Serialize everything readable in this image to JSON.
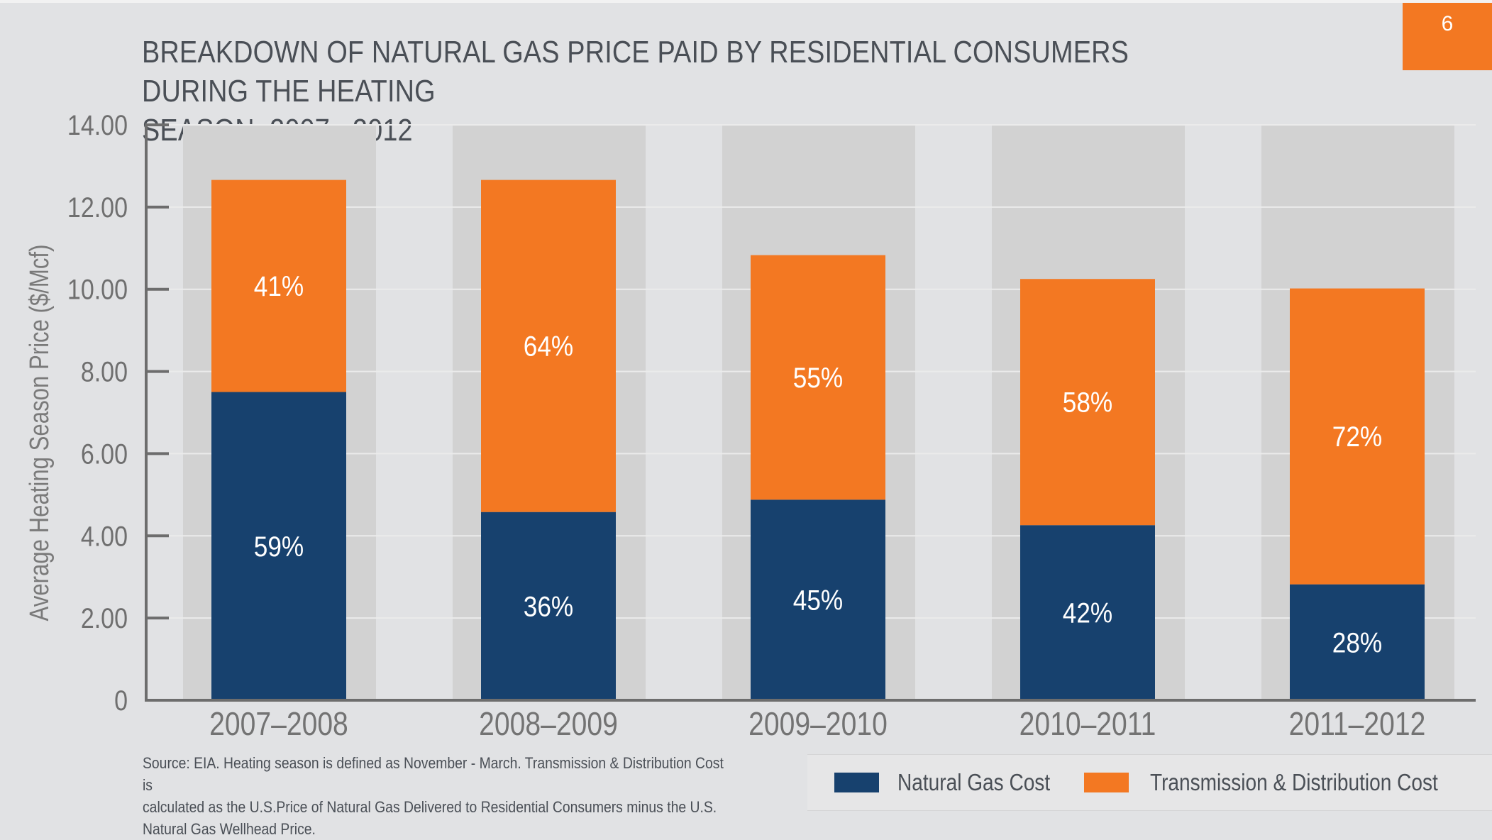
{
  "page_number": "6",
  "chart_data": {
    "type": "bar",
    "stacked": true,
    "title": "BREAKDOWN OF NATURAL GAS PRICE PAID BY RESIDENTIAL CONSUMERS DURING THE HEATING SEASON, 2007– 2012",
    "title_lines": [
      "BREAKDOWN OF NATURAL GAS PRICE PAID BY RESIDENTIAL CONSUMERS DURING THE HEATING",
      "SEASON, 2007– 2012"
    ],
    "xlabel": "",
    "ylabel": "Average Heating Season Price ($/Mcf)",
    "ylim": [
      0,
      14
    ],
    "yticks": [
      0,
      2,
      4,
      6,
      8,
      10,
      12,
      14
    ],
    "ytick_labels": [
      "0",
      "2.00",
      "4.00",
      "6.00",
      "8.00",
      "10.00",
      "12.00",
      "14.00"
    ],
    "categories": [
      "2007–2008",
      "2008–2009",
      "2009–2010",
      "2010–2011",
      "2011–2012"
    ],
    "series": [
      {
        "name": "Natural Gas Cost",
        "color": "#17416e",
        "values": [
          7.5,
          4.58,
          4.88,
          4.26,
          2.82
        ],
        "labels": [
          "59%",
          "36%",
          "45%",
          "42%",
          "28%"
        ]
      },
      {
        "name": "Transmission & Distribution Cost",
        "color": "#f37822",
        "values": [
          5.16,
          8.08,
          5.95,
          5.99,
          7.2
        ],
        "labels": [
          "41%",
          "64%",
          "55%",
          "58%",
          "72%"
        ]
      }
    ],
    "grid": true,
    "legend": "bottom-right",
    "source_note": [
      "Source: EIA. Heating season is defined as November - March. Transmission & Distribution Cost is",
      "calculated as the U.S.Price of Natural Gas Delivered to Residential Consumers minus the U.S.",
      "Natural Gas Wellhead Price."
    ]
  },
  "colors": {
    "accent": "#f37822",
    "navy": "#17416e",
    "background": "#e1e2e4",
    "column_band": "#d2d2d2",
    "text": "#4a4f56",
    "axis": "#6d6d6d"
  }
}
